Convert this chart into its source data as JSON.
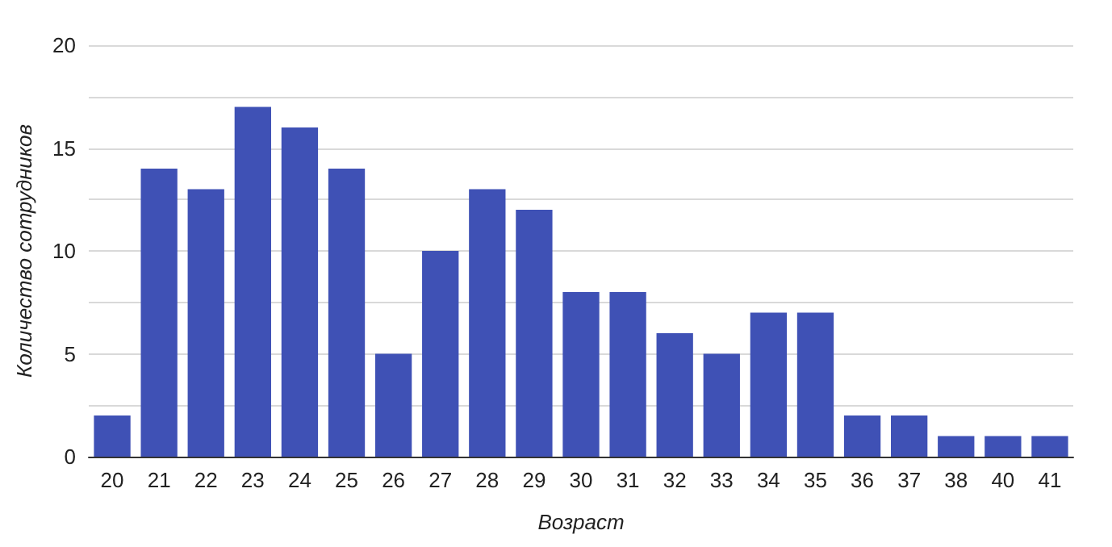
{
  "chart_data": {
    "type": "bar",
    "xlabel": "Возраст",
    "ylabel": "Количество сотрудников",
    "categories": [
      "20",
      "21",
      "22",
      "23",
      "24",
      "25",
      "26",
      "27",
      "28",
      "29",
      "30",
      "31",
      "32",
      "33",
      "34",
      "35",
      "36",
      "37",
      "38",
      "40",
      "41"
    ],
    "values": [
      2,
      14,
      13,
      17,
      16,
      14,
      5,
      10,
      13,
      12,
      8,
      8,
      6,
      5,
      7,
      7,
      2,
      2,
      1,
      1,
      1
    ],
    "color": "#3f51b5",
    "ylim": [
      0,
      20
    ],
    "yticks": [
      0,
      {
        "value": 2.5,
        "label": null
      },
      5,
      {
        "value": 7.5,
        "label": null
      },
      10,
      {
        "value": 12.5,
        "label": null
      },
      15,
      {
        "value": 17.5,
        "label": null
      },
      20
    ],
    "grid": "y"
  }
}
